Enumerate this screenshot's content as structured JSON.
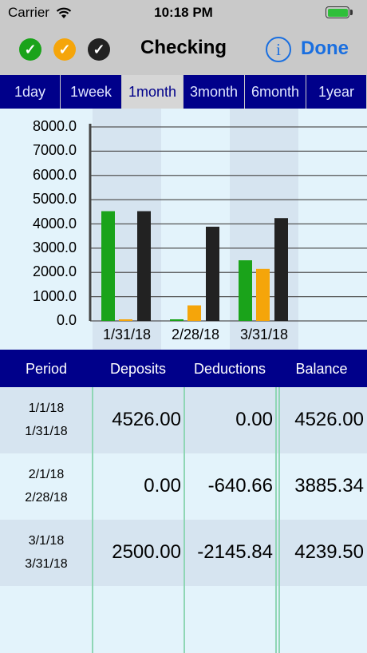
{
  "status": {
    "carrier": "Carrier",
    "time": "10:18 PM"
  },
  "nav": {
    "title": "Checking",
    "done_label": "Done",
    "info_label": "i",
    "check_colors": [
      "#1aa31a",
      "#f5a50a",
      "#222222"
    ]
  },
  "tabs": [
    "1day",
    "1week",
    "1month",
    "3month",
    "6month",
    "1year"
  ],
  "active_tab": "1month",
  "chart_data": {
    "type": "bar",
    "categories": [
      "1/31/18",
      "2/28/18",
      "3/31/18"
    ],
    "series": [
      {
        "values": [
          4526.0,
          0.0,
          2500.0
        ],
        "color": "#1aa31a"
      },
      {
        "values": [
          0.0,
          640.66,
          2145.84
        ],
        "color": "#f5a50a"
      },
      {
        "values": [
          4526.0,
          3885.34,
          4239.5
        ],
        "color": "#222222"
      }
    ],
    "yticks": [
      "8000.0",
      "7000.0",
      "6000.0",
      "5000.0",
      "4000.0",
      "3000.0",
      "2000.0",
      "1000.0",
      "0.0"
    ],
    "ylim": [
      0,
      8000
    ],
    "grid": true
  },
  "table": {
    "headers": [
      "Period",
      "Deposits",
      "Deductions",
      "Balance"
    ],
    "rows": [
      {
        "start": "1/1/18",
        "end": "1/31/18",
        "deposits": "4526.00",
        "deductions": "0.00",
        "balance": "4526.00"
      },
      {
        "start": "2/1/18",
        "end": "2/28/18",
        "deposits": "0.00",
        "deductions": "-640.66",
        "balance": "3885.34"
      },
      {
        "start": "3/1/18",
        "end": "3/31/18",
        "deposits": "2500.00",
        "deductions": "-2145.84",
        "balance": "4239.50"
      }
    ]
  }
}
